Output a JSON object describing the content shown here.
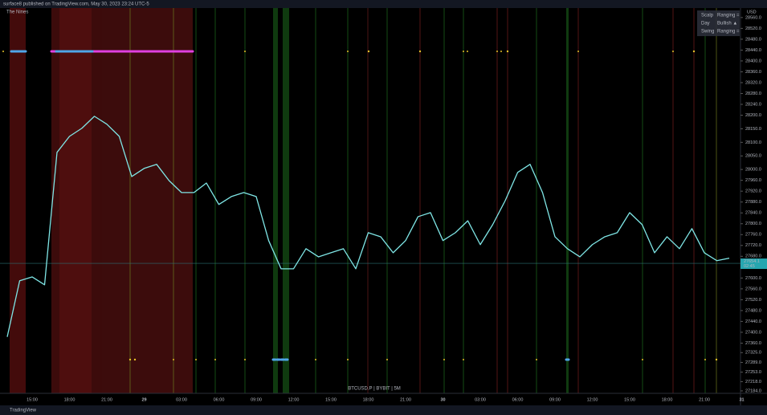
{
  "header": "surface8 published on TradingView.com, May 30, 2023 23:24 UTC-5",
  "footer": "TradingView",
  "indicator": "The Nines",
  "status_table": [
    [
      "Scalp",
      "Ranging ="
    ],
    [
      "Day",
      "Bullish ▲"
    ],
    [
      "Swing",
      "Ranging ="
    ]
  ],
  "chart_data": {
    "type": "line",
    "symbol": "BTCUSD.P | BYBIT | 5M",
    "currency": "USD",
    "categories": [
      null,
      null,
      "15:00",
      null,
      null,
      "18:00",
      null,
      null,
      "21:00",
      null,
      null,
      "29",
      null,
      null,
      "03:00",
      null,
      null,
      "06:00",
      null,
      null,
      "09:00",
      null,
      null,
      "12:00",
      null,
      null,
      "15:00",
      null,
      null,
      "18:00",
      null,
      null,
      "21:00",
      null,
      null,
      "30",
      null,
      null,
      "03:00",
      null,
      null,
      "06:00",
      null,
      null,
      "09:00",
      null,
      null,
      "12:00",
      null,
      null,
      "15:00",
      null,
      null,
      "18:00",
      null,
      null,
      "21:00",
      null,
      null,
      "31"
    ],
    "series": [
      {
        "name": "BTCUSD.P",
        "color": "#7fe6e6",
        "values": [
          27383,
          27590,
          27604,
          27575,
          28063,
          28122,
          28152,
          28196,
          28167,
          28122,
          27974,
          28004,
          28019,
          27959,
          27915,
          27915,
          27950,
          27871,
          27900,
          27915,
          27900,
          27738,
          27634,
          27634,
          27708,
          27678,
          27693,
          27708,
          27634,
          27767,
          27752,
          27693,
          27738,
          27826,
          27841,
          27738,
          27767,
          27811,
          27723,
          27797,
          27885,
          27989,
          28019,
          27915,
          27752,
          27708,
          27678,
          27723,
          27752,
          27767,
          27841,
          27797,
          27693,
          27752,
          27708,
          27782,
          27693,
          27664,
          27673,
          null
        ]
      }
    ],
    "last_price": 27654.1,
    "countdown": "02:45",
    "ylim": [
      27175,
      28595
    ],
    "yticks": [
      {
        "value": 28560,
        "label": "28560.0"
      },
      {
        "value": 28520,
        "label": "28520.0"
      },
      {
        "value": 28480,
        "label": "28480.0"
      },
      {
        "value": 28440,
        "label": "28440.0"
      },
      {
        "value": 28400,
        "label": "28400.0"
      },
      {
        "value": 28360,
        "label": "28360.0"
      },
      {
        "value": 28320,
        "label": "28320.0"
      },
      {
        "value": 28280,
        "label": "28280.0"
      },
      {
        "value": 28240,
        "label": "28240.0"
      },
      {
        "value": 28200,
        "label": "28200.0"
      },
      {
        "value": 28150,
        "label": "28150.0"
      },
      {
        "value": 28100,
        "label": "28100.0"
      },
      {
        "value": 28050,
        "label": "28050.0"
      },
      {
        "value": 28000,
        "label": "28000.0"
      },
      {
        "value": 27960,
        "label": "27960.0"
      },
      {
        "value": 27920,
        "label": "27920.0"
      },
      {
        "value": 27880,
        "label": "27880.0"
      },
      {
        "value": 27840,
        "label": "27840.0"
      },
      {
        "value": 27800,
        "label": "27800.0"
      },
      {
        "value": 27760,
        "label": "27760.0"
      },
      {
        "value": 27720,
        "label": "27720.0"
      },
      {
        "value": 27680,
        "label": "27680.0"
      },
      {
        "value": 27600,
        "label": "27600.0"
      },
      {
        "value": 27560,
        "label": "27560.0"
      },
      {
        "value": 27520,
        "label": "27520.0"
      },
      {
        "value": 27480,
        "label": "27480.0"
      },
      {
        "value": 27440,
        "label": "27440.0"
      },
      {
        "value": 27400,
        "label": "27400.0"
      },
      {
        "value": 27360,
        "label": "27360.0"
      },
      {
        "value": 27325,
        "label": "27325.0"
      },
      {
        "value": 27289,
        "label": "27289.0"
      },
      {
        "value": 27253,
        "label": "27253.0"
      },
      {
        "value": 27218,
        "label": "27218.0"
      },
      {
        "value": 27184,
        "label": "27184.0"
      }
    ],
    "grid": false
  }
}
